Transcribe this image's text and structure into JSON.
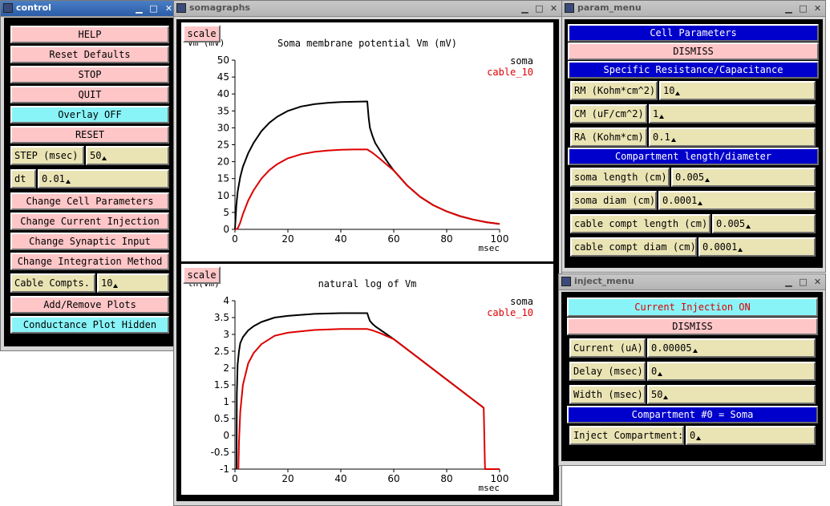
{
  "windows": {
    "control": {
      "title": "control"
    },
    "somagraphs": {
      "title": "somagraphs"
    },
    "param_menu": {
      "title": "param_menu"
    },
    "inject_menu": {
      "title": "inject_menu"
    }
  },
  "titlebar_buttons": {
    "minimize": "▁",
    "maximize": "□",
    "close": "✕"
  },
  "control": {
    "help": "HELP",
    "reset_defaults": "Reset Defaults",
    "stop": "STOP",
    "quit": "QUIT",
    "overlay": "Overlay OFF",
    "reset": "RESET",
    "step_label": "STEP (msec)",
    "step_value": "50",
    "dt_label": "dt",
    "dt_value": "0.01",
    "change_cell": "Change Cell Parameters",
    "change_current": "Change Current Injection",
    "change_synaptic": "Change Synaptic Input",
    "change_integration": "Change Integration Method",
    "cable_label": "Cable Compts.",
    "cable_value": "10",
    "add_remove": "Add/Remove Plots",
    "conductance": "Conductance Plot Hidden"
  },
  "param_menu": {
    "header": "Cell Parameters",
    "dismiss": "DISMISS",
    "section1": "Specific Resistance/Capacitance",
    "rm_label": "RM (Kohm*cm^2)",
    "rm_value": "10",
    "cm_label": "CM (uF/cm^2)",
    "cm_value": "1",
    "ra_label": "RA (Kohm*cm)",
    "ra_value": "0.1",
    "section2": "Compartment length/diameter",
    "soma_length_label": "soma length (cm)",
    "soma_length_value": "0.005",
    "soma_diam_label": "soma diam (cm)",
    "soma_diam_value": "0.0001",
    "cable_length_label": "cable compt length (cm)",
    "cable_length_value": "0.005",
    "cable_diam_label": "cable compt diam (cm)",
    "cable_diam_value": "0.0001"
  },
  "inject_menu": {
    "toggle": "Current Injection ON",
    "dismiss": "DISMISS",
    "current_label": "Current (uA)",
    "current_value": "0.00005",
    "delay_label": "Delay (msec)",
    "delay_value": "0",
    "width_label": "Width (msec)",
    "width_value": "50",
    "compartment_header": "Compartment #0 = Soma",
    "inject_label": "Inject Compartment:",
    "inject_value": "0"
  },
  "colors": {
    "soma": "#000000",
    "cable": "#dd0000"
  },
  "chart_data": [
    {
      "type": "line",
      "scale_button": "scale",
      "title": "Soma membrane potential Vm (mV)",
      "ylabel_partial": "Vm (mV)",
      "xlabel": "msec",
      "xlim": [
        0,
        100
      ],
      "ylim": [
        0,
        50
      ],
      "xticks": [
        0,
        20,
        40,
        60,
        80,
        100
      ],
      "yticks": [
        0,
        5,
        10,
        15,
        20,
        25,
        30,
        35,
        40,
        45,
        50
      ],
      "ytick_labels": [
        "0",
        "5",
        "10",
        "15",
        "20",
        "25",
        "30",
        "35",
        "40",
        "45",
        "50"
      ],
      "legend_placement": "top-right",
      "series": [
        {
          "name": "soma",
          "color": "#000000",
          "x": [
            0,
            0.5,
            1,
            2,
            3,
            5,
            7,
            10,
            13,
            16,
            20,
            25,
            30,
            35,
            40,
            45,
            50,
            50.5,
            51,
            52,
            53,
            55,
            58,
            60,
            65,
            70,
            75,
            80,
            85,
            90,
            95,
            100
          ],
          "y": [
            0,
            7,
            11,
            15.5,
            18.5,
            22.5,
            25.5,
            29,
            31.5,
            33.3,
            35,
            36.3,
            37,
            37.4,
            37.6,
            37.7,
            37.8,
            33,
            30,
            27.5,
            25.5,
            23,
            19.5,
            17.4,
            13,
            9.6,
            7.1,
            5.3,
            3.9,
            2.9,
            2.1,
            1.6
          ]
        },
        {
          "name": "cable_10",
          "color": "#dd0000",
          "x": [
            0,
            1,
            2,
            3,
            5,
            7,
            10,
            13,
            16,
            20,
            25,
            30,
            35,
            40,
            45,
            50,
            52,
            55,
            58,
            60,
            65,
            70,
            75,
            80,
            85,
            90,
            95,
            100
          ],
          "y": [
            0,
            0.2,
            2,
            4.5,
            8.5,
            11.5,
            15,
            17.5,
            19.3,
            21,
            22.2,
            22.9,
            23.3,
            23.5,
            23.6,
            23.6,
            22.6,
            20.7,
            18.7,
            17.4,
            13,
            9.6,
            7.1,
            5.3,
            3.9,
            2.9,
            2.1,
            1.6
          ]
        }
      ]
    },
    {
      "type": "line",
      "scale_button": "scale",
      "title": "natural log of Vm",
      "ylabel_partial": "ln(Vm)",
      "xlabel": "msec",
      "xlim": [
        0,
        100
      ],
      "ylim": [
        -1,
        4
      ],
      "xticks": [
        0,
        20,
        40,
        60,
        80,
        100
      ],
      "yticks": [
        -1,
        -0.5,
        0,
        0.5,
        1,
        1.5,
        2,
        2.5,
        3,
        3.5,
        4
      ],
      "ytick_labels": [
        "-1",
        "-0.5",
        "0",
        "0.5",
        "1",
        "1.5",
        "2",
        "2.5",
        "3",
        "3.5",
        "4"
      ],
      "legend_placement": "top-right",
      "series": [
        {
          "name": "soma",
          "color": "#000000",
          "x": [
            0.6,
            0.7,
            1,
            1.5,
            2,
            3,
            5,
            7,
            10,
            15,
            20,
            30,
            40,
            50,
            50.5,
            51,
            52,
            53,
            55,
            60,
            70,
            80,
            90,
            94
          ],
          "y": [
            -1,
            1.2,
            2.1,
            2.5,
            2.74,
            2.92,
            3.12,
            3.24,
            3.37,
            3.5,
            3.55,
            3.61,
            3.63,
            3.63,
            3.5,
            3.4,
            3.31,
            3.24,
            3.13,
            2.86,
            2.26,
            1.66,
            1.06,
            0.82
          ]
        },
        {
          "name": "cable_10",
          "color": "#dd0000",
          "x": [
            1.3,
            1.5,
            2,
            3,
            5,
            7,
            10,
            15,
            20,
            30,
            40,
            50,
            52,
            55,
            60,
            70,
            80,
            90,
            94,
            94.5,
            100
          ],
          "y": [
            -1,
            -0.2,
            0.7,
            1.5,
            2.14,
            2.44,
            2.71,
            2.96,
            3.05,
            3.13,
            3.16,
            3.16,
            3.12,
            3.03,
            2.86,
            2.26,
            1.66,
            1.06,
            0.82,
            -1,
            -1
          ]
        }
      ]
    }
  ]
}
